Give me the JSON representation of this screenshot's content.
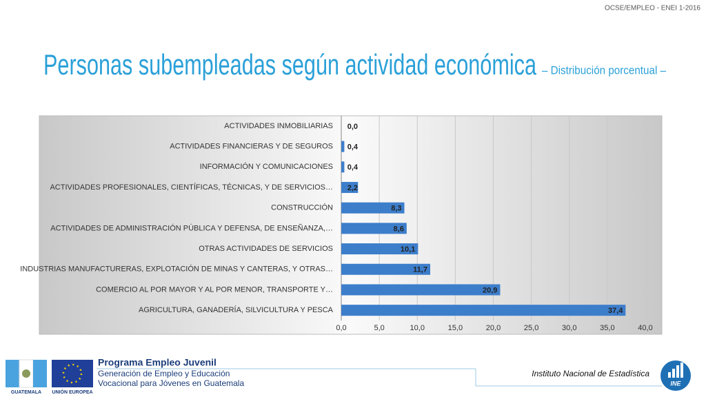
{
  "header": "OCSE/EMPLEO -  ENEI 1-2016",
  "chart_data": {
    "type": "hbar",
    "title": "Personas subempleadas según actividad económica",
    "subtitle": "– Distribución porcentual –",
    "categories": [
      "ACTIVIDADES INMOBILIARIAS",
      "ACTIVIDADES FINANCIERAS Y DE SEGUROS",
      "INFORMACIÓN Y COMUNICACIONES",
      "ACTIVIDADES PROFESIONALES, CIENTÍFICAS, TÉCNICAS, Y DE SERVICIOS…",
      "CONSTRUCCIÓN",
      "ACTIVIDADES DE ADMINISTRACIÓN PÚBLICA Y DEFENSA, DE ENSEÑANZA,…",
      "OTRAS ACTIVIDADES DE SERVICIOS",
      "INDUSTRIAS MANUFACTURERAS, EXPLOTACIÓN DE MINAS Y CANTERAS, Y OTRAS…",
      "COMERCIO AL POR MAYOR Y AL POR MENOR, TRANSPORTE Y…",
      "AGRICULTURA, GANADERÍA, SILVICULTURA Y PESCA"
    ],
    "values": [
      0.0,
      0.4,
      0.4,
      2.2,
      8.3,
      8.6,
      10.1,
      11.7,
      20.9,
      37.4
    ],
    "value_labels": [
      "0,0",
      "0,4",
      "0,4",
      "2,2",
      "8,3",
      "8,6",
      "10,1",
      "11,7",
      "20,9",
      "37,4"
    ],
    "color": "#3d7ecb",
    "xlim": [
      0,
      40
    ],
    "xticks": [
      {
        "value": 0,
        "label": "0,0"
      },
      {
        "value": 5,
        "label": "5,0"
      },
      {
        "value": 10,
        "label": "10,0"
      },
      {
        "value": 15,
        "label": "15,0"
      },
      {
        "value": 20,
        "label": "20,0"
      },
      {
        "value": 25,
        "label": "25,0"
      },
      {
        "value": 30,
        "label": "30,0"
      },
      {
        "value": 35,
        "label": "35,0"
      },
      {
        "value": 40,
        "label": "40,0"
      }
    ],
    "grid": true
  },
  "footer": {
    "program": "Programa Empleo Juvenil",
    "line1": "Generación de Empleo y Educación",
    "line2": "Vocacional para Jóvenes en Guatemala",
    "flag1": "GUATEMALA",
    "flag2": "UNIÓN EUROPEA",
    "institute": "Instituto Nacional de Estadística",
    "logo": "INE"
  }
}
